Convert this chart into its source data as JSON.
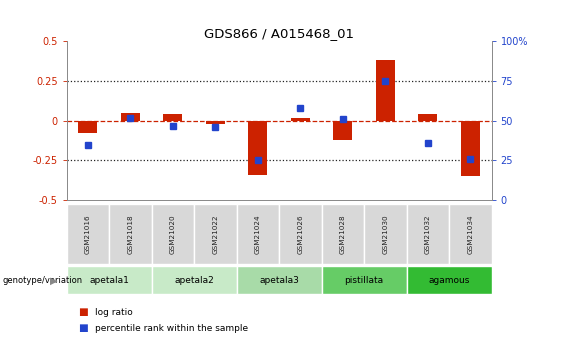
{
  "title": "GDS866 / A015468_01",
  "categories": [
    "GSM21016",
    "GSM21018",
    "GSM21020",
    "GSM21022",
    "GSM21024",
    "GSM21026",
    "GSM21028",
    "GSM21030",
    "GSM21032",
    "GSM21034"
  ],
  "log_ratio": [
    -0.08,
    0.05,
    0.04,
    -0.02,
    -0.34,
    0.02,
    -0.12,
    0.38,
    0.04,
    -0.35
  ],
  "percentile_rank": [
    35,
    52,
    47,
    46,
    25,
    58,
    51,
    75,
    36,
    26
  ],
  "group_defs": [
    {
      "start": 0,
      "end": 1,
      "label": "apetala1",
      "color": "#c8eac8"
    },
    {
      "start": 2,
      "end": 3,
      "label": "apetala2",
      "color": "#c8eac8"
    },
    {
      "start": 4,
      "end": 5,
      "label": "apetala3",
      "color": "#a8dba8"
    },
    {
      "start": 6,
      "end": 7,
      "label": "pistillata",
      "color": "#66cc66"
    },
    {
      "start": 8,
      "end": 9,
      "label": "agamous",
      "color": "#33bb33"
    }
  ],
  "ylim_left": [
    -0.5,
    0.5
  ],
  "ylim_right": [
    0,
    100
  ],
  "yticks_left": [
    -0.5,
    -0.25,
    0.0,
    0.25,
    0.5
  ],
  "ytick_labels_left": [
    "-0.5",
    "-0.25",
    "0",
    "0.25",
    "0.5"
  ],
  "yticks_right": [
    0,
    25,
    50,
    75,
    100
  ],
  "ytick_labels_right": [
    "0",
    "25",
    "50",
    "75",
    "100%"
  ],
  "red": "#cc2200",
  "blue": "#2244cc",
  "sample_box_color": "#d8d8d8",
  "legend_label_red": "log ratio",
  "legend_label_blue": "percentile rank within the sample",
  "genotype_label": "genotype/variation"
}
